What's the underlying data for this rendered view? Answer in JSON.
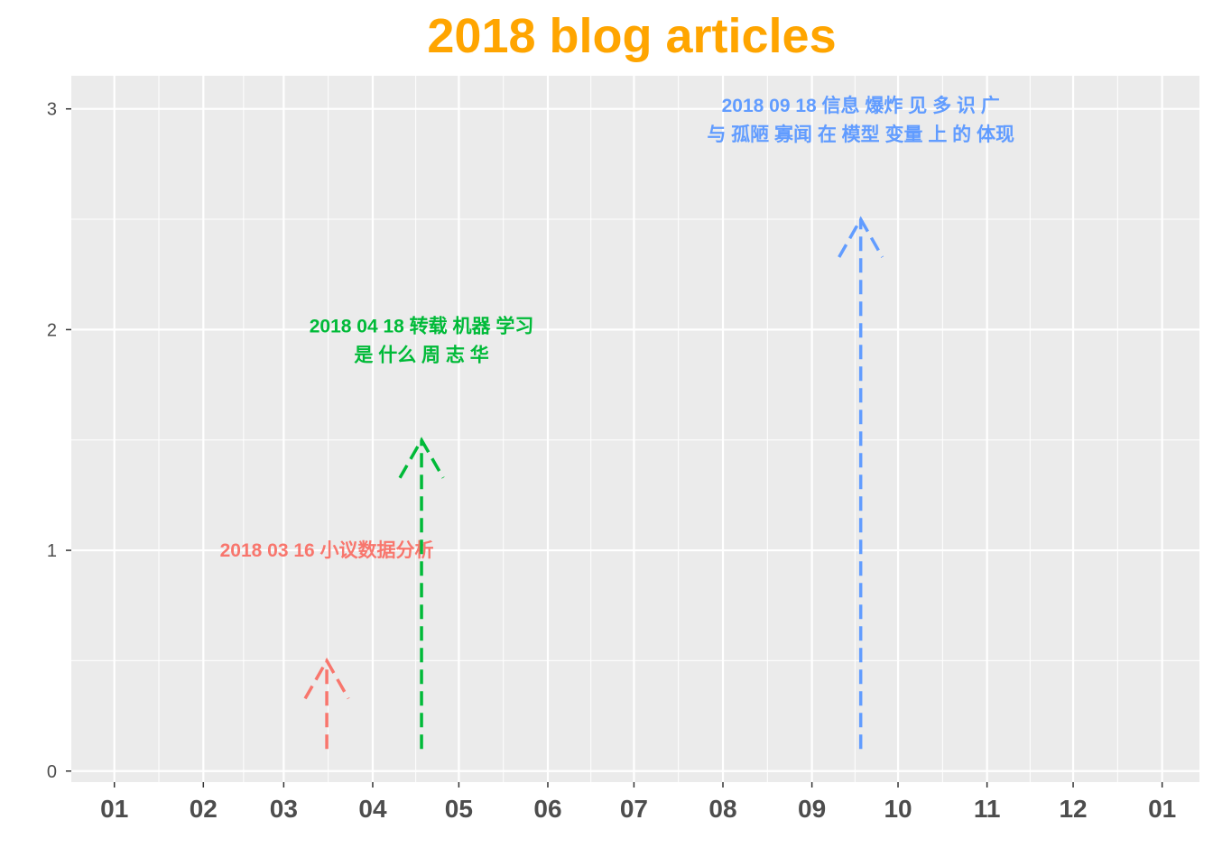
{
  "chart_data": {
    "type": "annotated-timeline",
    "title": "2018 blog articles",
    "title_color": "#FFA500",
    "xlabel": "",
    "ylabel": "",
    "x_tick_labels": [
      "01",
      "02",
      "03",
      "04",
      "05",
      "06",
      "07",
      "08",
      "09",
      "10",
      "11",
      "12",
      "01"
    ],
    "x_range": [
      "2017-12-17",
      "2019-01-14"
    ],
    "x_ticks": [
      "2018-01-01",
      "2018-02-01",
      "2018-03-01",
      "2018-04-01",
      "2018-05-01",
      "2018-06-01",
      "2018-07-01",
      "2018-08-01",
      "2018-09-01",
      "2018-10-01",
      "2018-11-01",
      "2018-12-01",
      "2019-01-01"
    ],
    "y_ticks": [
      0,
      1,
      2,
      3
    ],
    "ylim": [
      -0.05,
      3.15
    ],
    "grid": true,
    "background": "#EBEBEB",
    "events": [
      {
        "date": "2018-03-16",
        "label_lines": [
          "2018 03 16 小议数据分析"
        ],
        "color": "#F8766D",
        "arrow_from": 0.1,
        "arrow_to": 0.5,
        "label_y": 1.0
      },
      {
        "date": "2018-04-18",
        "label_lines": [
          "2018 04 18 转载 机器 学习",
          "是 什么 周 志 华"
        ],
        "color": "#00BA38",
        "arrow_from": 0.1,
        "arrow_to": 1.5,
        "label_y": 1.95
      },
      {
        "date": "2018-09-18",
        "label_lines": [
          "2018 09 18 信息 爆炸 见 多 识 广",
          "与 孤陋 寡闻 在 模型 变量 上 的 体现"
        ],
        "color": "#619CFF",
        "arrow_from": 0.1,
        "arrow_to": 2.5,
        "label_y": 2.95
      }
    ]
  }
}
